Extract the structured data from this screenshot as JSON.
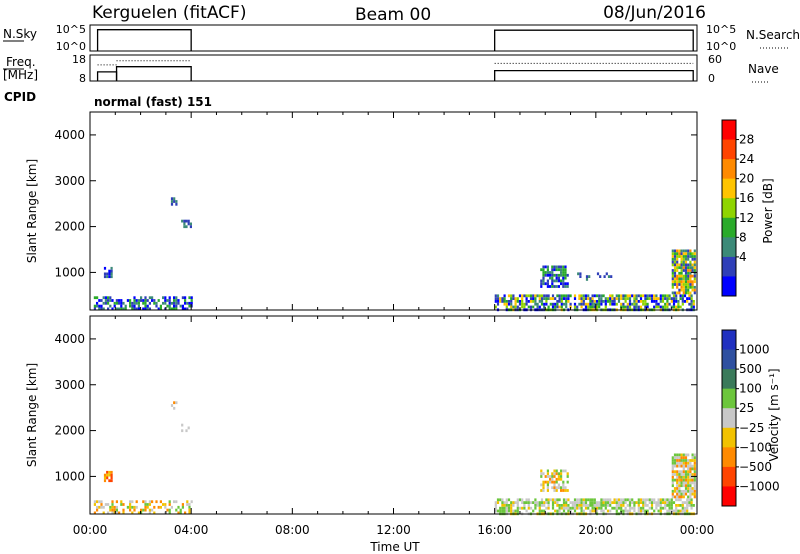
{
  "header": {
    "station": "Kerguelen (fitACF)",
    "beam": "Beam 00",
    "date": "08/Jun/2016"
  },
  "nsky_panel": {
    "left_label": "N.Sky",
    "left_ticks": [
      "10^5",
      "10^0"
    ],
    "right_label": "N.Search",
    "right_ticks": [
      "10^5",
      "10^0"
    ],
    "segments": [
      {
        "start": 0.3,
        "end": 4.0,
        "level": 0.82
      },
      {
        "start": 16.0,
        "end": 23.85,
        "level": 0.8
      }
    ]
  },
  "freq_panel": {
    "left_label_1": "Freq.",
    "left_label_2": "[MHz]",
    "left_ticks": [
      "18",
      "8"
    ],
    "right_label": "Nave",
    "right_ticks": [
      "60",
      "0"
    ],
    "freq_segments": [
      {
        "start": 0.3,
        "end": 1.05,
        "level": 0.35
      },
      {
        "start": 1.05,
        "end": 4.0,
        "level": 0.55
      },
      {
        "start": 16.0,
        "end": 23.85,
        "level": 0.4
      }
    ],
    "nave_segments": [
      {
        "start": 0.3,
        "end": 1.05,
        "level": 0.62
      },
      {
        "start": 1.05,
        "end": 4.0,
        "level": 0.78
      },
      {
        "start": 16.0,
        "end": 23.85,
        "level": 0.68
      }
    ]
  },
  "cpid_panel": {
    "label": "CPID",
    "text": "normal (fast) 151"
  },
  "x_axis": {
    "title": "Time UT",
    "ticks": [
      "00:00",
      "04:00",
      "08:00",
      "12:00",
      "16:00",
      "20:00",
      "00:00"
    ],
    "range_hours": [
      0,
      24
    ]
  },
  "power_colorbar": {
    "label": "Power [dB]",
    "ticks": [
      "28",
      "24",
      "20",
      "16",
      "12",
      "8",
      "4"
    ],
    "colors": [
      "#ff0000",
      "#ff4400",
      "#ff8a00",
      "#ffc400",
      "#8fd400",
      "#2aaa2a",
      "#3c8a78",
      "#2f3fb8",
      "#0000ff"
    ]
  },
  "velocity_colorbar": {
    "label": "Velocity [m s⁻¹]",
    "ticks": [
      "1000",
      "500",
      "100",
      "25",
      "−25",
      "−100",
      "−500",
      "−1000"
    ],
    "colors": [
      "#2030c0",
      "#2f50a0",
      "#3a7a5a",
      "#6cc63c",
      "#c8c8c8",
      "#f2c200",
      "#ff8a00",
      "#ff4400",
      "#ff0000"
    ]
  },
  "chart_data": [
    {
      "type": "heatmap",
      "title": "Power",
      "xlabel": "Time UT",
      "ylabel": "Slant Range [km]",
      "xlim": [
        0,
        24
      ],
      "ylim": [
        180,
        4500
      ],
      "yticks": [
        "1000",
        "2000",
        "3000",
        "4000"
      ],
      "colorbar_label": "Power [dB]",
      "clusters": [
        {
          "t0": 0.15,
          "t1": 4.0,
          "r0": 200,
          "r1": 480,
          "density": 0.55,
          "palette": [
            7,
            8,
            6,
            5
          ]
        },
        {
          "t0": 0.55,
          "t1": 0.85,
          "r0": 920,
          "r1": 1120,
          "density": 0.8,
          "palette": [
            7,
            8,
            6
          ]
        },
        {
          "t0": 3.2,
          "t1": 3.45,
          "r0": 2480,
          "r1": 2640,
          "density": 0.6,
          "palette": [
            7,
            6
          ]
        },
        {
          "t0": 3.6,
          "t1": 4.0,
          "r0": 1980,
          "r1": 2150,
          "density": 0.5,
          "palette": [
            7,
            6
          ]
        },
        {
          "t0": 16.0,
          "t1": 23.9,
          "r0": 200,
          "r1": 520,
          "density": 0.7,
          "palette": [
            7,
            6,
            5,
            4,
            3,
            8
          ]
        },
        {
          "t0": 17.8,
          "t1": 18.9,
          "r0": 700,
          "r1": 1150,
          "density": 0.65,
          "palette": [
            7,
            6,
            5,
            8
          ]
        },
        {
          "t0": 19.0,
          "t1": 20.8,
          "r0": 820,
          "r1": 1000,
          "density": 0.2,
          "palette": [
            7,
            6
          ]
        },
        {
          "t0": 23.0,
          "t1": 23.9,
          "r0": 550,
          "r1": 1500,
          "density": 0.85,
          "palette": [
            3,
            2,
            4,
            7,
            6,
            5
          ]
        }
      ]
    },
    {
      "type": "heatmap",
      "title": "Velocity",
      "xlabel": "Time UT",
      "ylabel": "Slant Range [km]",
      "xlim": [
        0,
        24
      ],
      "ylim": [
        180,
        4500
      ],
      "yticks": [
        "1000",
        "2000",
        "3000",
        "4000"
      ],
      "colorbar_label": "Velocity [m s⁻¹]",
      "clusters": [
        {
          "t0": 0.15,
          "t1": 4.0,
          "r0": 200,
          "r1": 480,
          "density": 0.45,
          "palette": [
            5,
            4,
            6,
            3
          ]
        },
        {
          "t0": 0.55,
          "t1": 0.85,
          "r0": 920,
          "r1": 1120,
          "density": 0.8,
          "palette": [
            6,
            7,
            5
          ]
        },
        {
          "t0": 3.2,
          "t1": 3.45,
          "r0": 2480,
          "r1": 2640,
          "density": 0.6,
          "palette": [
            6,
            5,
            4
          ]
        },
        {
          "t0": 3.6,
          "t1": 4.0,
          "r0": 1980,
          "r1": 2150,
          "density": 0.5,
          "palette": [
            3,
            4
          ]
        },
        {
          "t0": 16.0,
          "t1": 23.9,
          "r0": 200,
          "r1": 520,
          "density": 0.7,
          "palette": [
            4,
            3,
            4,
            5,
            3
          ]
        },
        {
          "t0": 17.8,
          "t1": 18.9,
          "r0": 700,
          "r1": 1150,
          "density": 0.6,
          "palette": [
            4,
            5,
            4,
            6,
            3
          ]
        },
        {
          "t0": 23.0,
          "t1": 23.9,
          "r0": 550,
          "r1": 1500,
          "density": 0.85,
          "palette": [
            4,
            4,
            5,
            3,
            6
          ]
        }
      ]
    }
  ]
}
